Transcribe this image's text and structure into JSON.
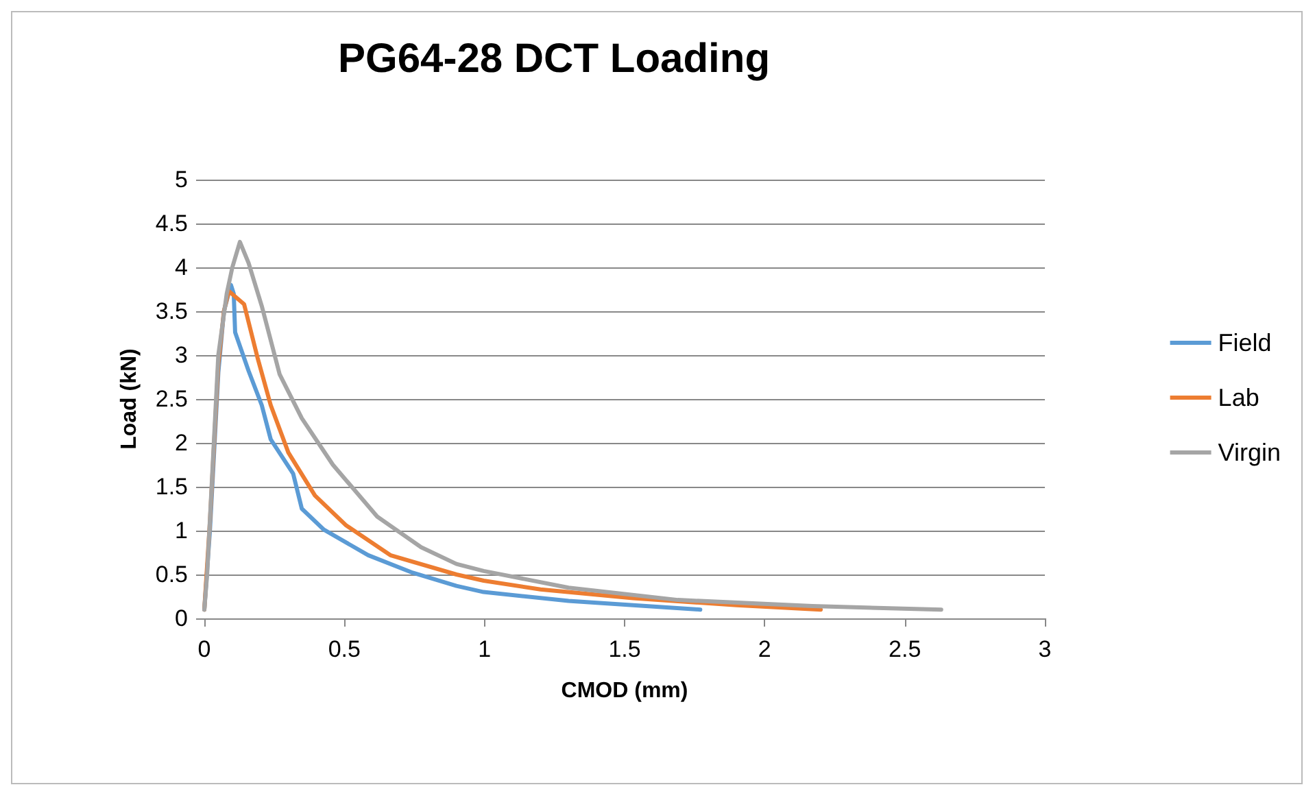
{
  "chart_data": {
    "type": "line",
    "title": "PG64-28 DCT Loading",
    "xlabel": "CMOD (mm)",
    "ylabel": "Load (kN)",
    "xlim": [
      0,
      3
    ],
    "xticks": [
      0,
      0.5,
      1,
      1.5,
      2,
      2.5,
      3
    ],
    "ylim": [
      0,
      5
    ],
    "yticks": [
      0,
      0.5,
      1,
      1.5,
      2,
      2.5,
      3,
      3.5,
      4,
      4.5,
      5
    ],
    "grid": "y",
    "legend": "right",
    "marker": "none",
    "line_style": "solid",
    "series": [
      {
        "name": "Field",
        "color": "#5b9bd5",
        "x": [
          0,
          0.02,
          0.05,
          0.07,
          0.095,
          0.105,
          0.11,
          0.158,
          0.205,
          0.237,
          0.317,
          0.348,
          0.427,
          0.585,
          0.744,
          0.9,
          0.997,
          1.3,
          1.53,
          1.77
        ],
        "values": [
          0.1,
          1.0,
          2.8,
          3.5,
          3.8,
          3.7,
          3.26,
          2.82,
          2.43,
          2.04,
          1.65,
          1.25,
          1.01,
          0.72,
          0.52,
          0.37,
          0.3,
          0.2,
          0.15,
          0.1
        ]
      },
      {
        "name": "Lab",
        "color": "#ed7d31",
        "x": [
          0,
          0.02,
          0.05,
          0.07,
          0.087,
          0.142,
          0.19,
          0.237,
          0.3,
          0.395,
          0.506,
          0.664,
          0.9,
          0.997,
          1.2,
          1.53,
          1.9,
          2.2
        ],
        "values": [
          0.1,
          1.1,
          2.9,
          3.5,
          3.73,
          3.58,
          2.97,
          2.43,
          1.89,
          1.4,
          1.06,
          0.72,
          0.5,
          0.43,
          0.33,
          0.23,
          0.15,
          0.1
        ]
      },
      {
        "name": "Virgin",
        "color": "#a5a5a5",
        "x": [
          0,
          0.01,
          0.05,
          0.08,
          0.1,
          0.127,
          0.158,
          0.205,
          0.269,
          0.348,
          0.459,
          0.617,
          0.774,
          0.9,
          0.997,
          1.3,
          1.69,
          2.17,
          2.63
        ],
        "values": [
          0.1,
          0.5,
          3.0,
          3.7,
          4.0,
          4.29,
          4.05,
          3.56,
          2.78,
          2.28,
          1.75,
          1.16,
          0.81,
          0.62,
          0.54,
          0.35,
          0.21,
          0.14,
          0.1
        ]
      }
    ]
  }
}
